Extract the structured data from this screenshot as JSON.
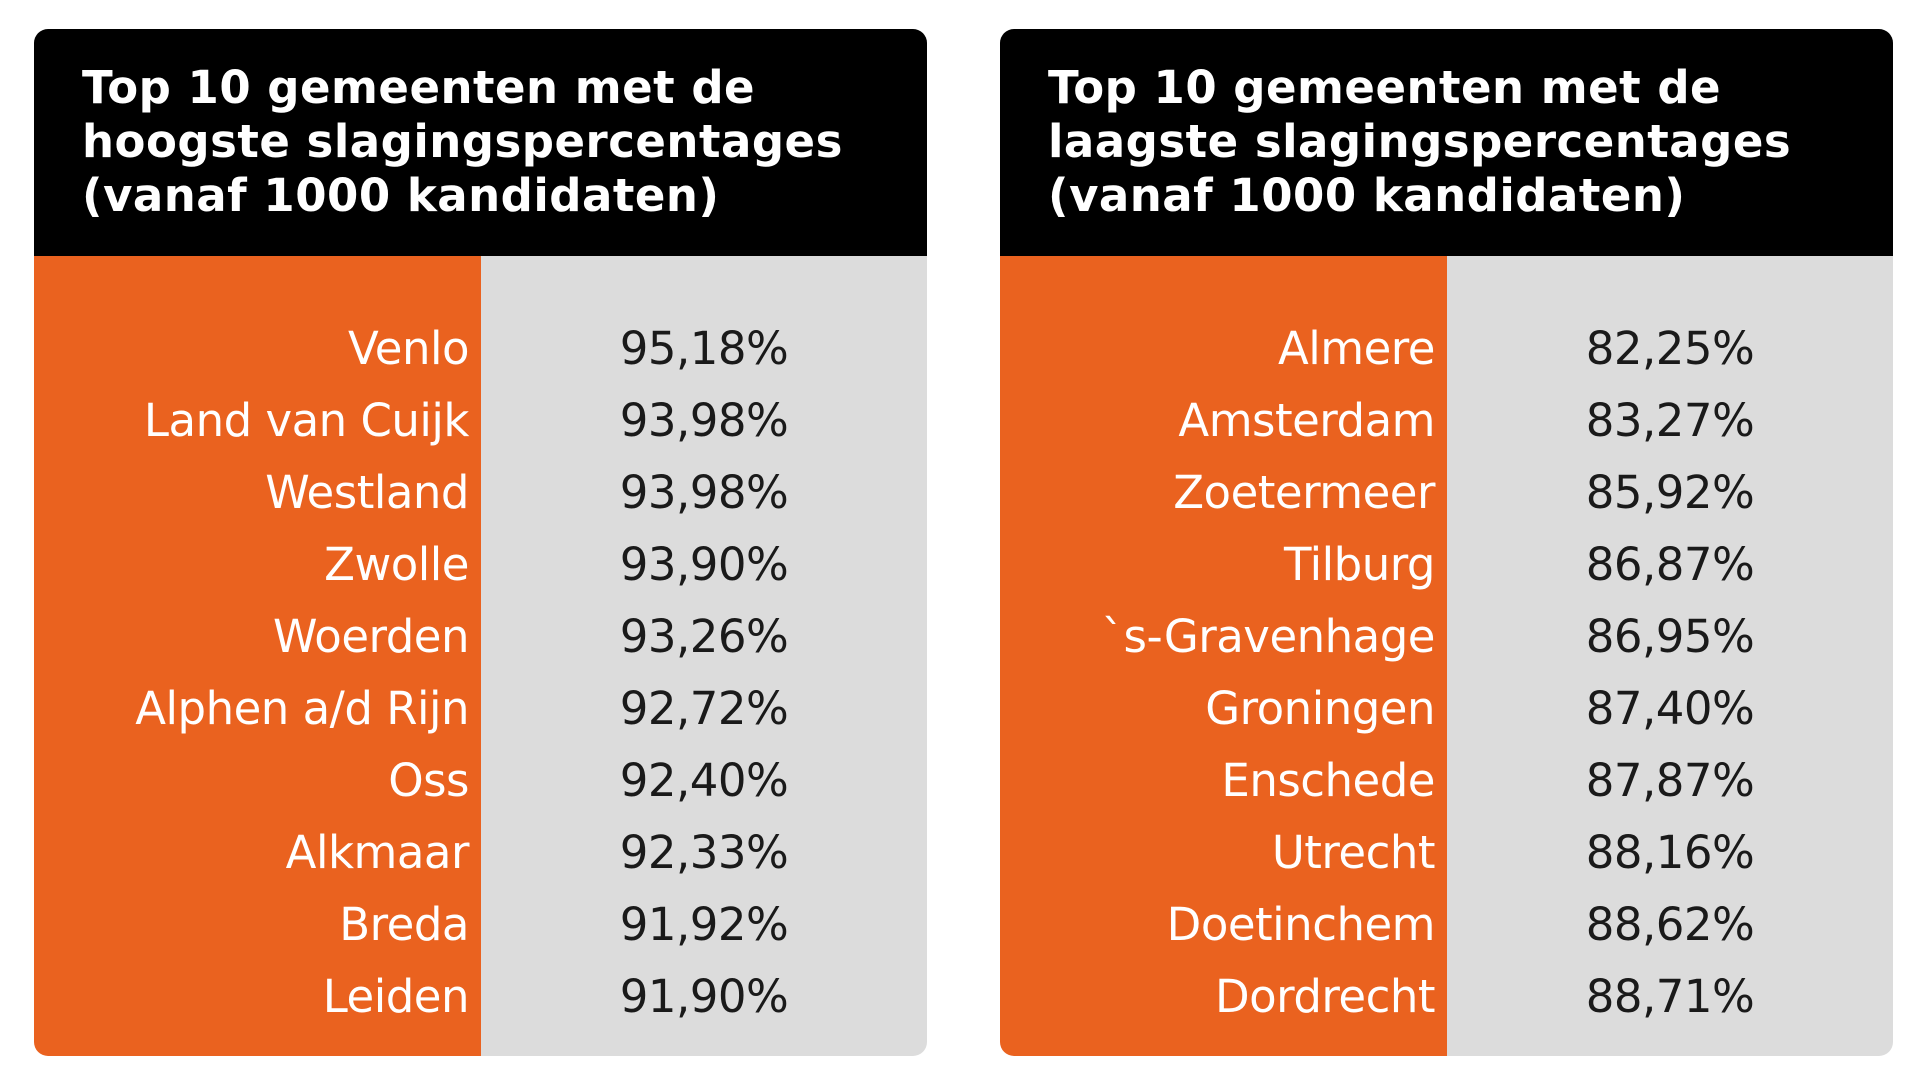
{
  "colors": {
    "header_bg": "#000000",
    "name_column_bg": "#ea621f",
    "value_column_bg": "#dcdcdc",
    "header_text": "#ffffff",
    "name_text": "#ffffff",
    "value_text": "#1a1a1a"
  },
  "tables": [
    {
      "title_lines": [
        "Top 10 gemeenten met de",
        "hoogste slagingspercentages",
        "(vanaf 1000 kandidaten)"
      ],
      "rows": [
        {
          "name": "Venlo",
          "value": "95,18%"
        },
        {
          "name": "Land van Cuijk",
          "value": "93,98%"
        },
        {
          "name": "Westland",
          "value": "93,98%"
        },
        {
          "name": "Zwolle",
          "value": "93,90%"
        },
        {
          "name": "Woerden",
          "value": "93,26%"
        },
        {
          "name": "Alphen a/d Rijn",
          "value": "92,72%"
        },
        {
          "name": "Oss",
          "value": "92,40%"
        },
        {
          "name": "Alkmaar",
          "value": "92,33%"
        },
        {
          "name": "Breda",
          "value": "91,92%"
        },
        {
          "name": "Leiden",
          "value": "91,90%"
        }
      ]
    },
    {
      "title_lines": [
        "Top 10 gemeenten met de",
        "laagste slagingspercentages",
        "(vanaf 1000 kandidaten)"
      ],
      "rows": [
        {
          "name": "Almere",
          "value": "82,25%"
        },
        {
          "name": "Amsterdam",
          "value": "83,27%"
        },
        {
          "name": "Zoetermeer",
          "value": "85,92%"
        },
        {
          "name": "Tilburg",
          "value": "86,87%"
        },
        {
          "name": "`s-Gravenhage",
          "value": "86,95%"
        },
        {
          "name": "Groningen",
          "value": "87,40%"
        },
        {
          "name": "Enschede",
          "value": "87,87%"
        },
        {
          "name": "Utrecht",
          "value": "88,16%"
        },
        {
          "name": "Doetinchem",
          "value": "88,62%"
        },
        {
          "name": "Dordrecht",
          "value": "88,71%"
        }
      ]
    }
  ]
}
